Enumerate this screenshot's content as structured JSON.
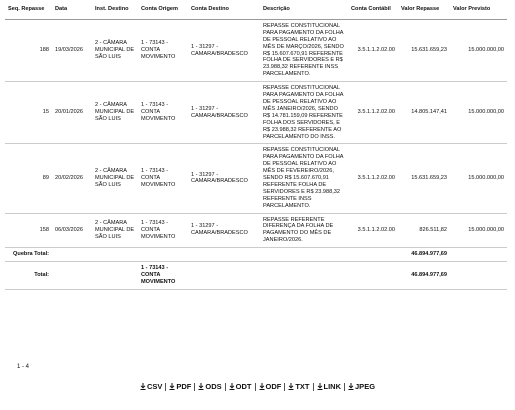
{
  "table": {
    "headers": [
      "Seq. Repasse",
      "Data",
      "Inst. Destino",
      "Conta Origem",
      "Conta Destino",
      "Descrição",
      "Conta Contábil",
      "Valor Repasse",
      "Valor Previsto"
    ],
    "rows": [
      [
        "188",
        "19/03/2026",
        "2 - CÂMARA MUNICIPAL DE SÃO LUIS",
        "1 - 73143 - CONTA MOVIMENTO",
        "1 - 31297 - CAMARA/BRADESCO",
        "REPASSE CONSTITUCIONAL PARA PAGAMENTO DA FOLHA DE PESSOAL RELATIVO AO MÊS DE MARÇO/2026, SENDO R$ 15.607.670,91 REFERENTE FOLHA DE SERVIDORES E R$ 23.988,32 REFERENTE INSS PARCELAMENTO.",
        "3.5.1.1.2.02.00",
        "15.631.659,23",
        "15.000.000,00"
      ],
      [
        "15",
        "20/01/2026",
        "2 - CÂMARA MUNICIPAL DE SÃO LUIS",
        "1 - 73143 - CONTA MOVIMENTO",
        "1 - 31297 - CAMARA/BRADESCO",
        "REPASSE CONSTITUCIONAL PARA PAGAMENTO DA FOLHA DE PESSOAL RELATIVO AO MÊS JANEIRO/2026, SENDO R$ 14.781.159,09 REFERENTE FOLHA DOS SERVIDORES, E R$ 23.988,32 REFERENTE AO PARCELAMENTO DO INSS.",
        "3.5.1.1.2.02.00",
        "14.805.147,41",
        "15.000.000,00"
      ],
      [
        "89",
        "20/02/2026",
        "2 - CÂMARA MUNICIPAL DE SÃO LUIS",
        "1 - 73143 - CONTA MOVIMENTO",
        "1 - 31297 - CAMARA/BRADESCO",
        "REPASSE CONSTITUCIONAL PARA PAGAMENTO DA FOLHA DE PESSOAL RELATIVO AO MÊS DE FEVEREIRO/2026, SENDO R$ 15.607.670,91 REFERENTE FOLHA DE SERVIDORES E R$ 23.988,32 REFERENTE INSS PARCELAMENTO.",
        "3.5.1.1.2.02.00",
        "15.631.659,23",
        "15.000.000,00"
      ],
      [
        "158",
        "06/03/2026",
        "2 - CÂMARA MUNICIPAL DE SÃO LUIS",
        "1 - 73143 - CONTA MOVIMENTO",
        "1 - 31297 - CAMARA/BRADESCO",
        "REPASSE REFERENTE DIFERENÇA DA FOLHA DE PAGAMENTO DO MÊS DE JANEIRO/2026.",
        "3.5.1.1.2.02.00",
        "826.511,82",
        "15.000.000,00"
      ]
    ],
    "subtotal": {
      "label": "Quebra Total:",
      "value": "46.894.977,69"
    },
    "total": {
      "label": "Total:",
      "account": "1 - 73143 - CONTA MOVIMENTO",
      "value": "46.894.977,69"
    }
  },
  "pagination": "1 - 4",
  "exports": [
    "CSV",
    "PDF",
    "ODS",
    "ODT",
    "ODF",
    "TXT",
    "LINK",
    "JPEG"
  ]
}
